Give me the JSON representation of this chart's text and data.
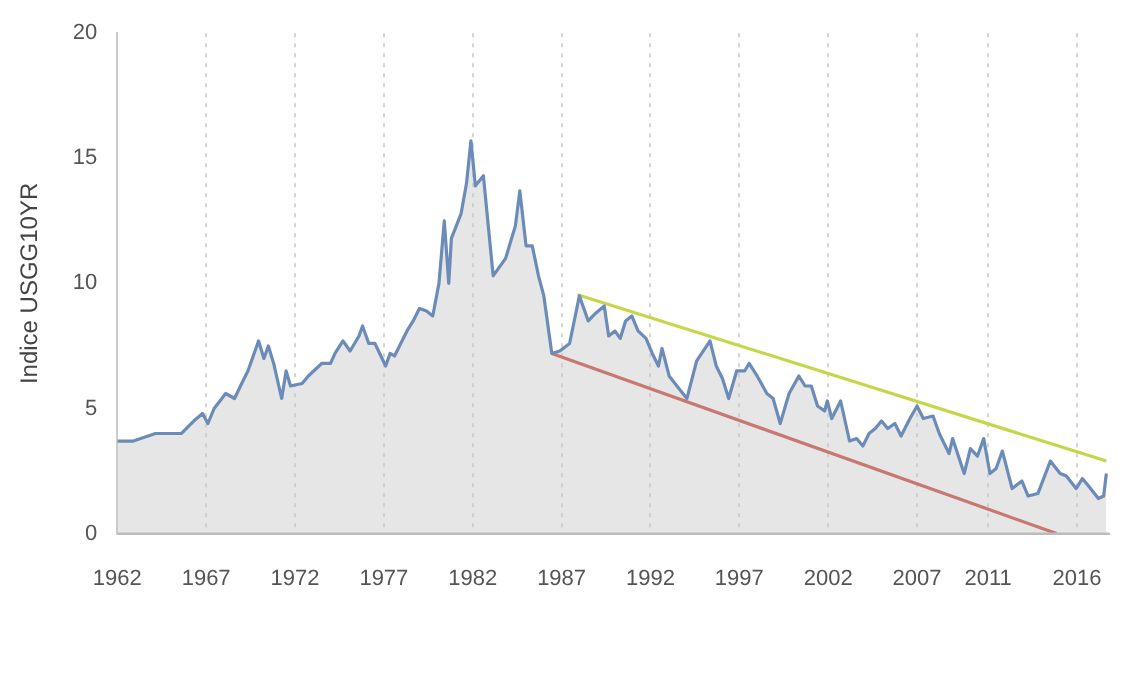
{
  "chart_data": {
    "type": "area",
    "ylabel": "Indice USGG10YR",
    "xlim": [
      1962,
      2017.8
    ],
    "xticks": [
      1962,
      1967,
      1972,
      1977,
      1982,
      1987,
      1992,
      1997,
      2002,
      2007,
      2011,
      2016
    ],
    "ylim": [
      0,
      20
    ],
    "yticks": [
      0,
      5,
      10,
      15,
      20
    ],
    "grid": "x",
    "legend": false,
    "marker": "none",
    "series": [
      {
        "color": "#6b8cb8",
        "x": [
          1962.0,
          1962.9,
          1964.15,
          1965.6,
          1966.3,
          1966.8,
          1967.1,
          1967.45,
          1968.1,
          1968.6,
          1969.0,
          1969.35,
          1969.95,
          1970.25,
          1970.5,
          1970.8,
          1971.25,
          1971.5,
          1971.75,
          1972.4,
          1972.75,
          1973.5,
          1974.0,
          1974.25,
          1974.7,
          1975.1,
          1975.6,
          1975.8,
          1976.15,
          1976.5,
          1977.1,
          1977.35,
          1977.6,
          1978.3,
          1978.65,
          1979.0,
          1979.4,
          1979.75,
          1980.1,
          1980.4,
          1980.65,
          1980.8,
          1981.35,
          1981.65,
          1981.9,
          1982.15,
          1982.6,
          1983.15,
          1983.85,
          1984.4,
          1984.65,
          1985.0,
          1985.35,
          1985.7,
          1986.0,
          1986.45,
          1986.9,
          1987.45,
          1988.0,
          1988.5,
          1988.9,
          1989.4,
          1989.65,
          1990.0,
          1990.3,
          1990.6,
          1990.95,
          1991.3,
          1991.75,
          1992.1,
          1992.45,
          1992.65,
          1993.05,
          1993.6,
          1994.05,
          1994.6,
          1995.35,
          1995.7,
          1996.05,
          1996.4,
          1996.85,
          1997.3,
          1997.55,
          1998.0,
          1998.55,
          1998.9,
          1999.3,
          1999.8,
          2000.35,
          2000.7,
          2001.05,
          2001.4,
          2001.8,
          2001.95,
          2002.2,
          2002.7,
          2003.2,
          2003.6,
          2003.95,
          2004.3,
          2004.65,
          2005.0,
          2005.35,
          2005.75,
          2006.1,
          2006.6,
          2007.0,
          2007.35,
          2007.9,
          2008.25,
          2008.8,
          2009.0,
          2009.65,
          2010.0,
          2010.4,
          2010.75,
          2011.1,
          2011.45,
          2011.8,
          2012.35,
          2012.9,
          2013.25,
          2013.8,
          2014.5,
          2015.05,
          2015.4,
          2015.95,
          2016.3,
          2016.65,
          2017.2,
          2017.5,
          2017.65
        ],
        "values": [
          3.7,
          3.7,
          4.0,
          4.0,
          4.5,
          4.8,
          4.4,
          5.0,
          5.6,
          5.4,
          6.0,
          6.5,
          7.7,
          7.0,
          7.5,
          6.8,
          5.4,
          6.5,
          5.9,
          6.0,
          6.3,
          6.8,
          6.8,
          7.2,
          7.7,
          7.3,
          7.9,
          8.3,
          7.6,
          7.6,
          6.7,
          7.2,
          7.1,
          8.1,
          8.5,
          9.0,
          8.9,
          8.7,
          10.0,
          12.5,
          10.0,
          11.8,
          12.8,
          14.0,
          15.7,
          13.9,
          14.3,
          10.3,
          11.0,
          12.3,
          13.7,
          11.5,
          11.5,
          10.3,
          9.5,
          7.2,
          7.3,
          7.6,
          9.5,
          8.5,
          8.8,
          9.1,
          7.9,
          8.1,
          7.8,
          8.5,
          8.7,
          8.1,
          7.8,
          7.2,
          6.7,
          7.4,
          6.3,
          5.8,
          5.4,
          6.9,
          7.7,
          6.7,
          6.2,
          5.4,
          6.5,
          6.5,
          6.8,
          6.3,
          5.6,
          5.4,
          4.4,
          5.6,
          6.3,
          5.9,
          5.9,
          5.1,
          4.9,
          5.3,
          4.6,
          5.3,
          3.7,
          3.8,
          3.5,
          4.0,
          4.2,
          4.5,
          4.2,
          4.4,
          3.9,
          4.6,
          5.1,
          4.6,
          4.7,
          4.0,
          3.2,
          3.8,
          2.4,
          3.4,
          3.1,
          3.8,
          2.4,
          2.6,
          3.3,
          1.8,
          2.1,
          1.5,
          1.6,
          2.9,
          2.4,
          2.3,
          1.8,
          2.2,
          1.9,
          1.4,
          1.5,
          2.4
        ]
      },
      {
        "type": "line",
        "color": "#c5d64a",
        "x": [
          1987.9,
          2017.65
        ],
        "values": [
          9.55,
          2.9
        ]
      },
      {
        "type": "line",
        "color": "#c8352a",
        "x": [
          1986.45,
          2014.85
        ],
        "values": [
          7.2,
          0
        ]
      }
    ]
  }
}
